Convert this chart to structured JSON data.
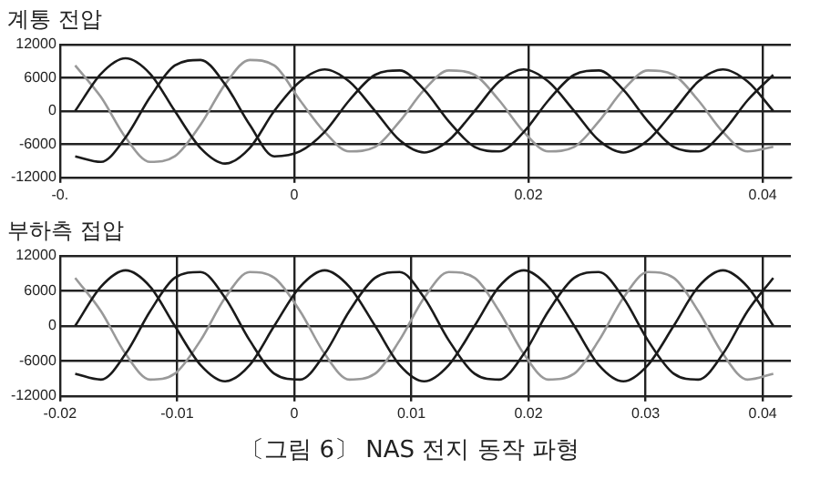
{
  "chart_data": [
    {
      "type": "line",
      "title": "계통 전압",
      "xlim": [
        -0.02,
        0.0424
      ],
      "xticks": [
        {
          "value": -0.02,
          "label": "-0."
        },
        0,
        0.02,
        0.04
      ],
      "ylim": [
        -12000,
        12000
      ],
      "yticks": [
        -12000,
        -6000,
        0,
        6000,
        12000
      ],
      "grid": true,
      "legend": false,
      "marker": "none",
      "line_style": "solid",
      "series": [
        {
          "color": "#1a1a1a",
          "x": [
            -0.0187,
            -0.0165,
            -0.0144,
            -0.0123,
            -0.0102,
            -0.008,
            -0.0059,
            -0.0038,
            -0.0017,
            0.0005,
            0.0026,
            0.0047,
            0.0069,
            0.009,
            0.0111,
            0.0132,
            0.0154,
            0.0175,
            0.0196,
            0.0217,
            0.0239,
            0.026,
            0.0281,
            0.0302,
            0.0324,
            0.0345,
            0.0366,
            0.0387,
            0.0409
          ],
          "values": [
            0,
            6700,
            9500,
            6700,
            0,
            -6700,
            -9500,
            -6700,
            0,
            5300,
            7500,
            5300,
            0,
            -5300,
            -7500,
            -5300,
            0,
            5300,
            7500,
            5300,
            0,
            -5300,
            -7500,
            -5300,
            0,
            5300,
            7500,
            5300,
            0
          ]
        },
        {
          "color": "#1a1a1a",
          "x": [
            -0.0187,
            -0.0165,
            -0.0144,
            -0.0123,
            -0.0102,
            -0.008,
            -0.0059,
            -0.0038,
            -0.0017,
            0.0005,
            0.0026,
            0.0047,
            0.0069,
            0.009,
            0.0111,
            0.0132,
            0.0154,
            0.0175,
            0.0196,
            0.0217,
            0.0239,
            0.026,
            0.0281,
            0.0302,
            0.0324,
            0.0345,
            0.0366,
            0.0387,
            0.0409
          ],
          "values": [
            -8200,
            -9200,
            -4800,
            2500,
            8200,
            9200,
            4800,
            -2500,
            -8200,
            -7300,
            -3800,
            1900,
            6500,
            7300,
            3800,
            -1900,
            -6500,
            -7300,
            -3800,
            1900,
            6500,
            7300,
            3800,
            -1900,
            -6500,
            -7300,
            -3800,
            1900,
            6500
          ]
        },
        {
          "color": "#999999",
          "x": [
            -0.0187,
            -0.0165,
            -0.0144,
            -0.0123,
            -0.0102,
            -0.008,
            -0.0059,
            -0.0038,
            -0.0017,
            0.0005,
            0.0026,
            0.0047,
            0.0069,
            0.009,
            0.0111,
            0.0132,
            0.0154,
            0.0175,
            0.0196,
            0.0217,
            0.0239,
            0.026,
            0.0281,
            0.0302,
            0.0324,
            0.0345,
            0.0366,
            0.0387,
            0.0409
          ],
          "values": [
            8200,
            2500,
            -4800,
            -9200,
            -8200,
            -2500,
            4800,
            9200,
            8200,
            1900,
            -3800,
            -7300,
            -6500,
            -1900,
            3800,
            7300,
            6500,
            1900,
            -3800,
            -7300,
            -6500,
            -1900,
            3800,
            7300,
            6500,
            1900,
            -3800,
            -7300,
            -6500
          ]
        }
      ]
    },
    {
      "type": "line",
      "title": "부하측 접압",
      "xlim": [
        -0.02,
        0.0424
      ],
      "xticks": [
        -0.02,
        -0.01,
        0,
        0.01,
        0.02,
        0.03,
        0.04
      ],
      "ylim": [
        -12000,
        12000
      ],
      "yticks": [
        -12000,
        -6000,
        0,
        6000,
        12000
      ],
      "grid": true,
      "legend": false,
      "marker": "none",
      "line_style": "solid",
      "annotations": [
        "〔그림 6〕 NAS 전지 동작 파형"
      ],
      "series": [
        {
          "color": "#1a1a1a",
          "x": [
            -0.0187,
            -0.0165,
            -0.0144,
            -0.0123,
            -0.0102,
            -0.008,
            -0.0059,
            -0.0038,
            -0.0017,
            0.0005,
            0.0026,
            0.0047,
            0.0069,
            0.009,
            0.0111,
            0.0132,
            0.0154,
            0.0175,
            0.0196,
            0.0217,
            0.0239,
            0.026,
            0.0281,
            0.0302,
            0.0324,
            0.0345,
            0.0366,
            0.0387,
            0.0409
          ],
          "values": [
            0,
            6700,
            9500,
            6700,
            0,
            -6700,
            -9500,
            -6700,
            0,
            6700,
            9500,
            6700,
            0,
            -6700,
            -9500,
            -6700,
            0,
            6700,
            9500,
            6700,
            0,
            -6700,
            -9500,
            -6700,
            0,
            6700,
            9500,
            6700,
            0
          ]
        },
        {
          "color": "#1a1a1a",
          "x": [
            -0.0187,
            -0.0165,
            -0.0144,
            -0.0123,
            -0.0102,
            -0.008,
            -0.0059,
            -0.0038,
            -0.0017,
            0.0005,
            0.0026,
            0.0047,
            0.0069,
            0.009,
            0.0111,
            0.0132,
            0.0154,
            0.0175,
            0.0196,
            0.0217,
            0.0239,
            0.026,
            0.0281,
            0.0302,
            0.0324,
            0.0345,
            0.0366,
            0.0387,
            0.0409
          ],
          "values": [
            -8200,
            -9200,
            -4800,
            2500,
            8200,
            9200,
            4800,
            -2500,
            -8200,
            -9200,
            -4800,
            2500,
            8200,
            9200,
            4800,
            -2500,
            -8200,
            -9200,
            -4800,
            2500,
            8200,
            9200,
            4800,
            -2500,
            -8200,
            -9200,
            -4800,
            2500,
            8200
          ]
        },
        {
          "color": "#999999",
          "x": [
            -0.0187,
            -0.0165,
            -0.0144,
            -0.0123,
            -0.0102,
            -0.008,
            -0.0059,
            -0.0038,
            -0.0017,
            0.0005,
            0.0026,
            0.0047,
            0.0069,
            0.009,
            0.0111,
            0.0132,
            0.0154,
            0.0175,
            0.0196,
            0.0217,
            0.0239,
            0.026,
            0.0281,
            0.0302,
            0.0324,
            0.0345,
            0.0366,
            0.0387,
            0.0409
          ],
          "values": [
            8200,
            2500,
            -4800,
            -9200,
            -8200,
            -2500,
            4800,
            9200,
            8200,
            2500,
            -4800,
            -9200,
            -8200,
            -2500,
            4800,
            9200,
            8200,
            2500,
            -4800,
            -9200,
            -8200,
            -2500,
            4800,
            9200,
            8200,
            2500,
            -4800,
            -9200,
            -8200
          ]
        }
      ]
    }
  ]
}
